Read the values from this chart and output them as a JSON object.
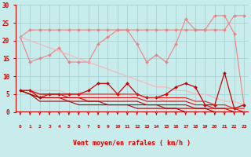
{
  "x": [
    0,
    1,
    2,
    3,
    4,
    5,
    6,
    7,
    8,
    9,
    10,
    11,
    12,
    13,
    14,
    15,
    16,
    17,
    18,
    19,
    20,
    21,
    22,
    23
  ],
  "series": [
    {
      "color": "#f08080",
      "linewidth": 0.8,
      "marker": "D",
      "markersize": 2.0,
      "values": [
        21,
        23,
        23,
        23,
        23,
        23,
        23,
        23,
        23,
        23,
        23,
        23,
        23,
        23,
        23,
        23,
        23,
        23,
        23,
        23,
        23,
        23,
        27,
        27
      ]
    },
    {
      "color": "#f08080",
      "linewidth": 0.8,
      "marker": "D",
      "markersize": 2.0,
      "values": [
        21,
        14,
        15,
        16,
        18,
        14,
        14,
        14,
        19,
        21,
        23,
        23,
        19,
        14,
        16,
        14,
        19,
        26,
        23,
        23,
        27,
        27,
        22,
        2
      ]
    },
    {
      "color": "#f5b8b8",
      "linewidth": 0.9,
      "marker": null,
      "markersize": 0,
      "values": [
        21,
        20,
        19,
        18,
        17,
        16,
        15,
        14,
        13,
        12,
        11,
        10,
        9,
        8,
        7,
        7,
        6,
        6,
        5,
        5,
        4,
        3,
        3,
        2
      ]
    },
    {
      "color": "#f5b8b8",
      "linewidth": 0.9,
      "marker": null,
      "markersize": 0,
      "values": [
        6,
        6,
        6,
        6,
        6,
        5,
        5,
        5,
        5,
        5,
        5,
        5,
        4,
        4,
        4,
        3,
        3,
        3,
        2,
        2,
        2,
        2,
        1,
        1
      ]
    },
    {
      "color": "#cc0000",
      "linewidth": 0.9,
      "marker": "D",
      "markersize": 2.0,
      "values": [
        6,
        6,
        4,
        5,
        5,
        5,
        5,
        6,
        8,
        8,
        5,
        8,
        5,
        4,
        4,
        5,
        7,
        8,
        7,
        2,
        2,
        11,
        1,
        2
      ]
    },
    {
      "color": "#ee2222",
      "linewidth": 0.8,
      "marker": null,
      "markersize": 0,
      "values": [
        6,
        6,
        5,
        5,
        5,
        5,
        5,
        5,
        5,
        5,
        5,
        5,
        5,
        4,
        4,
        4,
        4,
        4,
        3,
        3,
        2,
        2,
        1,
        1
      ]
    },
    {
      "color": "#dd1111",
      "linewidth": 0.8,
      "marker": null,
      "markersize": 0,
      "values": [
        6,
        6,
        5,
        5,
        5,
        4,
        4,
        4,
        4,
        4,
        4,
        4,
        4,
        3,
        3,
        3,
        3,
        3,
        2,
        2,
        1,
        1,
        1,
        0
      ]
    },
    {
      "color": "#cc0000",
      "linewidth": 0.8,
      "marker": null,
      "markersize": 0,
      "values": [
        6,
        5,
        4,
        4,
        4,
        4,
        4,
        3,
        3,
        3,
        3,
        3,
        3,
        2,
        2,
        2,
        2,
        2,
        1,
        1,
        1,
        1,
        0,
        0
      ]
    },
    {
      "color": "#bb0000",
      "linewidth": 0.8,
      "marker": null,
      "markersize": 0,
      "values": [
        6,
        5,
        4,
        4,
        4,
        3,
        3,
        3,
        3,
        2,
        2,
        2,
        2,
        2,
        2,
        1,
        1,
        1,
        1,
        1,
        0,
        0,
        0,
        0
      ]
    },
    {
      "color": "#aa0000",
      "linewidth": 0.8,
      "marker": null,
      "markersize": 0,
      "values": [
        6,
        5,
        3,
        3,
        3,
        3,
        2,
        2,
        2,
        2,
        2,
        2,
        1,
        1,
        1,
        1,
        1,
        0,
        0,
        0,
        0,
        0,
        0,
        0
      ]
    }
  ],
  "ylim": [
    0,
    30
  ],
  "yticks": [
    0,
    5,
    10,
    15,
    20,
    25,
    30
  ],
  "xlim": [
    -0.5,
    23.5
  ],
  "xlabel": "Vent moyen/en rafales ( km/h )",
  "bg_color": "#c8ecec",
  "grid_color": "#a8d4d4",
  "axis_color": "#cc0000",
  "label_color": "#cc0000",
  "arrow_color": "#cc0000",
  "red_line_y": 0
}
